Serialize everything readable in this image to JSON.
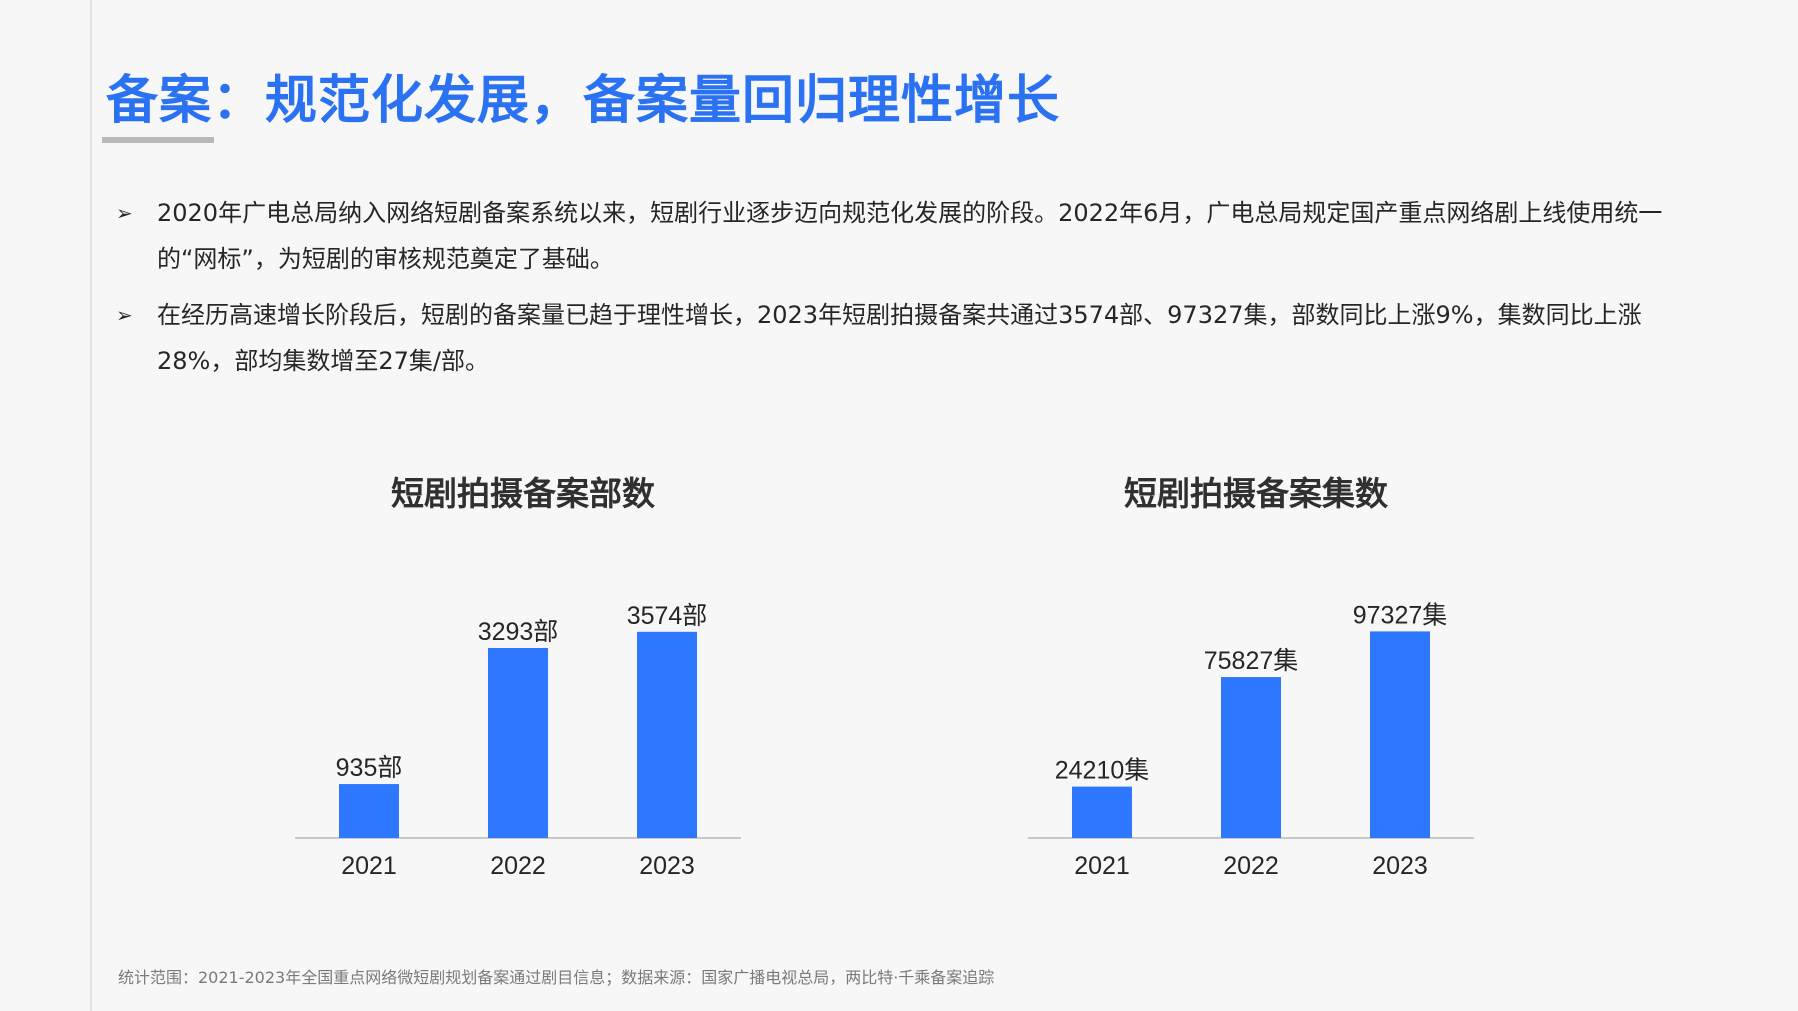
{
  "page": {
    "title": "备案：规范化发展，备案量回归理性增长",
    "bullet_marker": "➢",
    "bullets": [
      "2020年广电总局纳入网络短剧备案系统以来，短剧行业逐步迈向规范化发展的阶段。2022年6月，广电总局规定国产重点网络剧上线使用统一的“网标”，为短剧的审核规范奠定了基础。",
      "在经历高速增长阶段后，短剧的备案量已趋于理性增长，2023年短剧拍摄备案共通过3574部、97327集，部数同比上涨9%，集数同比上涨28%，部均集数增至27集/部。"
    ],
    "footnote": "统计范围：2021-2023年全国重点网络微短剧规划备案通过剧目信息；数据来源：国家广播电视总局，两比特·千乘备案追踪"
  },
  "colors": {
    "accent": "#2b72f3",
    "bar": "#2e77ff",
    "axis": "#c8c8c8",
    "text": "#262626"
  },
  "chart_data": [
    {
      "type": "bar",
      "title": "短剧拍摄备案部数",
      "categories": [
        "2021",
        "2022",
        "2023"
      ],
      "values": [
        935,
        3293,
        3574
      ],
      "value_labels": [
        "935部",
        "3293部",
        "3574部"
      ],
      "ylim": [
        0,
        3900
      ],
      "grid": false
    },
    {
      "type": "bar",
      "title": "短剧拍摄备案集数",
      "categories": [
        "2021",
        "2022",
        "2023"
      ],
      "values": [
        24210,
        75827,
        97327
      ],
      "value_labels": [
        "24210集",
        "75827集",
        "97327集"
      ],
      "ylim": [
        0,
        106000
      ],
      "grid": false
    }
  ]
}
